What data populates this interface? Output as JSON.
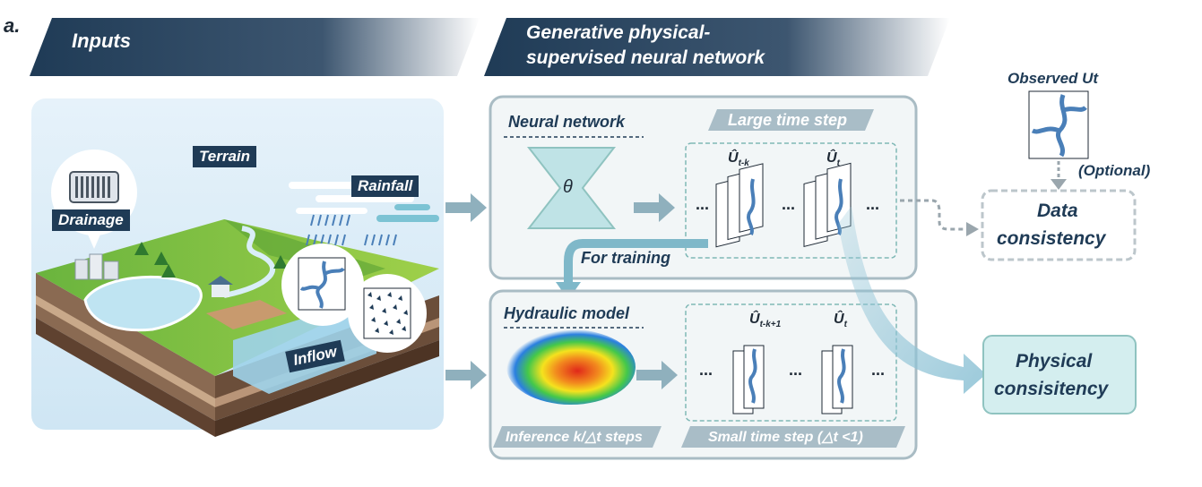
{
  "panel_label": "a.",
  "inputs": {
    "banner": "Inputs",
    "terrain": "Terrain",
    "rainfall": "Rainfall",
    "drainage": "Drainage",
    "inflow": "Inflow"
  },
  "network": {
    "banner_line1": "Generative physical-",
    "banner_line2": "supervised neural network",
    "neural_network": "Neural network",
    "theta": "θ",
    "large_step": "Large time step",
    "u_start": "Û",
    "u_start_sub": "t-k",
    "u_end": "Û",
    "u_end_sub": "t",
    "dots": "...",
    "for_training": "For training",
    "hydraulic_model": "Hydraulic model",
    "u2_start": "Û",
    "u2_start_sub": "t-k+1",
    "u2_end": "Û",
    "u2_end_sub": "t",
    "inference": "Inference k/△t steps",
    "small_step": "Small time step (△t <1)"
  },
  "outputs": {
    "observed": "Observed Ut",
    "optional": "(Optional)",
    "data_consistency_1": "Data",
    "data_consistency_2": "consistency",
    "physical_1": "Physical",
    "physical_2": "consisitency"
  },
  "colors": {
    "navy": "#1f3b56",
    "teal_box": "#dff0ef",
    "teal_line": "#8fc3c0",
    "arrow": "#8fb0bd",
    "river": "#4a7fb8"
  }
}
